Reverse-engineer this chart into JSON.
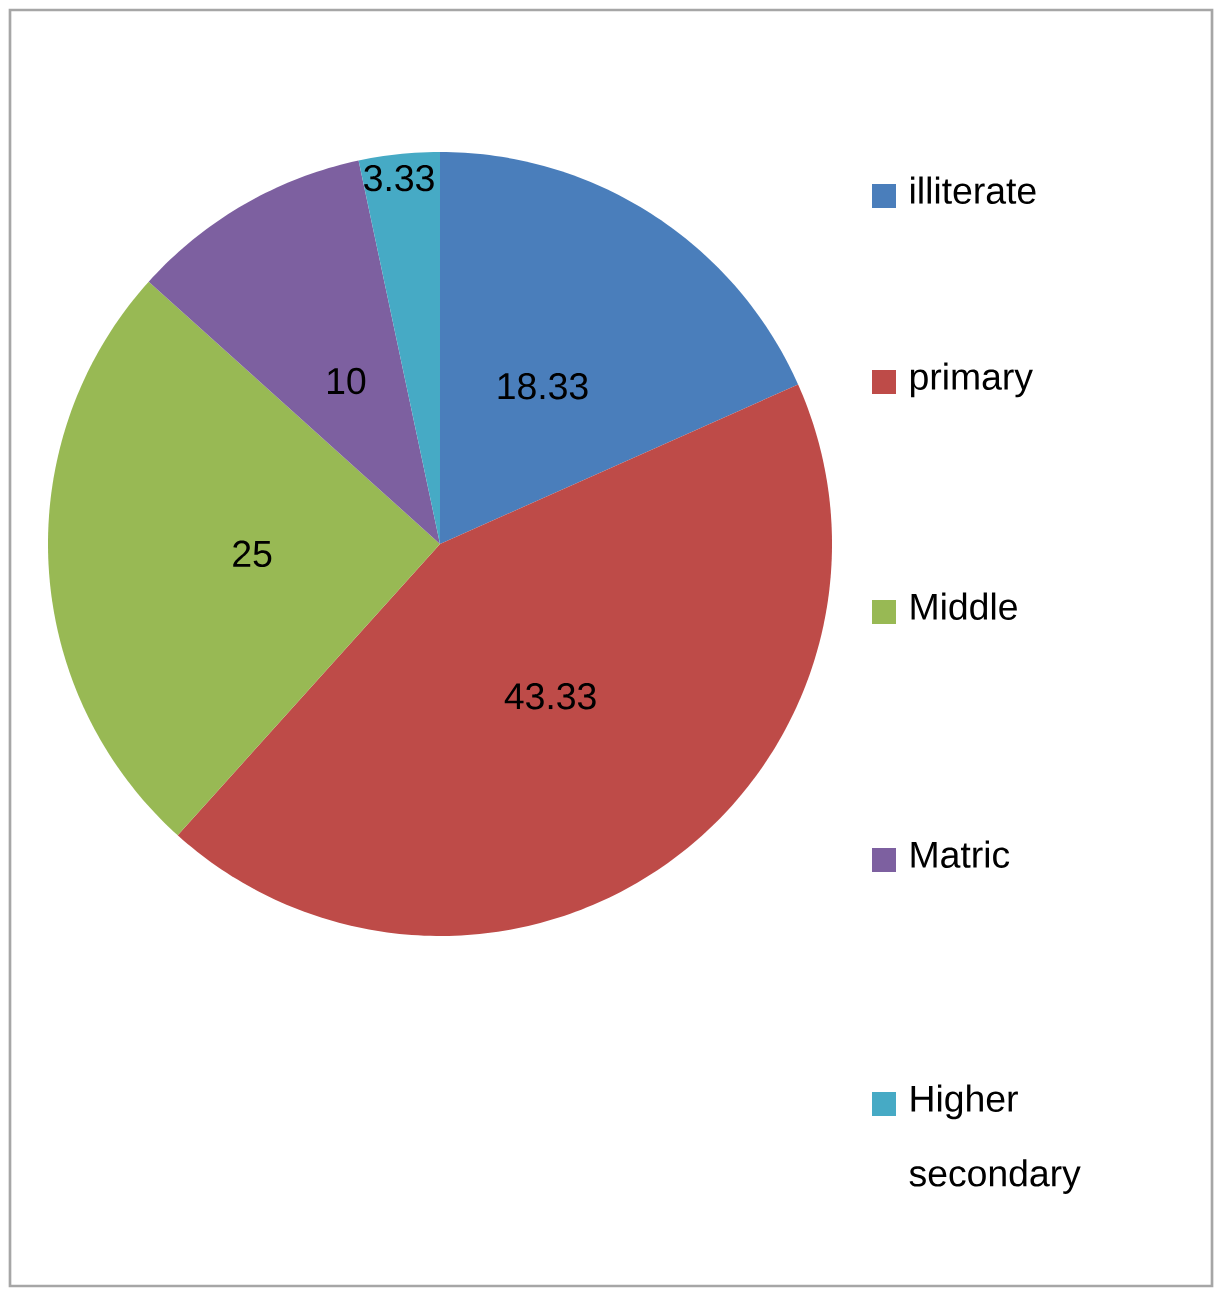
{
  "chart_data": {
    "type": "pie",
    "categories": [
      "illiterate",
      "primary",
      "Middle",
      "Matric",
      "Higher secondary"
    ],
    "values": [
      18.33,
      43.33,
      25,
      10,
      3.33
    ],
    "colors": [
      "#4a7ebb",
      "#be4b48",
      "#98b954",
      "#7d60a0",
      "#46aac5"
    ],
    "data_labels": true,
    "legend": "right"
  }
}
